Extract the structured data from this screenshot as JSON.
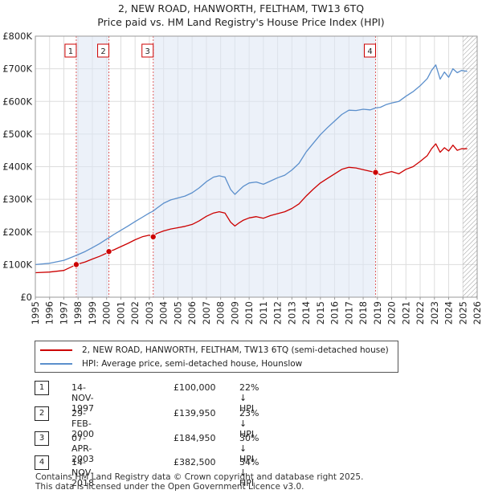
{
  "title_line1": "2, NEW ROAD, HANWORTH, FELTHAM, TW13 6TQ",
  "title_line2": "Price paid vs. HM Land Registry's House Price Index (HPI)",
  "chart_data": {
    "type": "line",
    "x_range": [
      1995,
      2026
    ],
    "y_range": [
      0,
      800000
    ],
    "y_ticks": [
      0,
      100000,
      200000,
      300000,
      400000,
      500000,
      600000,
      700000,
      800000
    ],
    "y_tick_labels": [
      "£0",
      "£100K",
      "£200K",
      "£300K",
      "£400K",
      "£500K",
      "£600K",
      "£700K",
      "£800K"
    ],
    "x_ticks": [
      1995,
      1996,
      1997,
      1998,
      1999,
      2000,
      2001,
      2002,
      2003,
      2004,
      2005,
      2006,
      2007,
      2008,
      2009,
      2010,
      2011,
      2012,
      2013,
      2014,
      2015,
      2016,
      2017,
      2018,
      2019,
      2020,
      2021,
      2022,
      2023,
      2024,
      2025,
      2026
    ],
    "x_tick_labels": [
      "1995",
      "1996",
      "1997",
      "1998",
      "1999",
      "2000",
      "2001",
      "2002",
      "2003",
      "2004",
      "2005",
      "2006",
      "2007",
      "2008",
      "2009",
      "2010",
      "2011",
      "2012",
      "2013",
      "2014",
      "2015",
      "2016",
      "2017",
      "2018",
      "2019",
      "2020",
      "2021",
      "2022",
      "2023",
      "2024",
      "2025",
      "2026"
    ],
    "shaded_ranges": [
      [
        1997.87,
        2000.16
      ],
      [
        2003.27,
        2018.87
      ]
    ],
    "hatched_from": 2025.0,
    "series": [
      {
        "name": "2, NEW ROAD, HANWORTH, FELTHAM, TW13 6TQ (semi-detached house)",
        "color": "#cc0000",
        "x": [
          1995.0,
          1996.0,
          1997.0,
          1997.87,
          1998.5,
          1999.0,
          1999.5,
          2000.0,
          2000.16,
          2000.5,
          2001.0,
          2001.5,
          2002.0,
          2002.5,
          2003.0,
          2003.27,
          2003.5,
          2004.0,
          2004.5,
          2005.0,
          2005.5,
          2006.0,
          2006.5,
          2007.0,
          2007.5,
          2007.9,
          2008.3,
          2008.7,
          2009.0,
          2009.3,
          2009.6,
          2010.0,
          2010.5,
          2011.0,
          2011.5,
          2012.0,
          2012.5,
          2013.0,
          2013.5,
          2014.0,
          2014.5,
          2015.0,
          2015.5,
          2016.0,
          2016.5,
          2017.0,
          2017.5,
          2018.0,
          2018.5,
          2018.87,
          2019.2,
          2019.6,
          2020.0,
          2020.5,
          2021.0,
          2021.5,
          2022.0,
          2022.5,
          2022.8,
          2023.1,
          2023.4,
          2023.7,
          2024.0,
          2024.3,
          2024.6,
          2024.9,
          2025.3
        ],
        "y": [
          75000,
          77000,
          82000,
          100000,
          108000,
          117000,
          125000,
          135000,
          139950,
          145000,
          155000,
          165000,
          176000,
          185000,
          190000,
          184950,
          195000,
          203000,
          209000,
          213000,
          217000,
          223000,
          234000,
          248000,
          258000,
          262000,
          258000,
          230000,
          218000,
          228000,
          236000,
          243000,
          247000,
          242000,
          250000,
          256000,
          262000,
          272000,
          286000,
          310000,
          331000,
          350000,
          364000,
          378000,
          392000,
          398000,
          396000,
          391000,
          386000,
          382500,
          375000,
          381000,
          385000,
          378000,
          392000,
          400000,
          416000,
          434000,
          455000,
          470000,
          444000,
          458000,
          448000,
          466000,
          450000,
          455000,
          455000
        ]
      },
      {
        "name": "HPI: Average price, semi-detached house, Hounslow",
        "color": "#5b8fcc",
        "x": [
          1995.0,
          1996.0,
          1997.0,
          1997.87,
          1998.5,
          1999.0,
          1999.5,
          2000.0,
          2000.16,
          2000.5,
          2001.0,
          2001.5,
          2002.0,
          2002.5,
          2003.0,
          2003.27,
          2003.5,
          2004.0,
          2004.5,
          2005.0,
          2005.5,
          2006.0,
          2006.5,
          2007.0,
          2007.5,
          2007.9,
          2008.3,
          2008.7,
          2009.0,
          2009.3,
          2009.6,
          2010.0,
          2010.5,
          2011.0,
          2011.5,
          2012.0,
          2012.5,
          2013.0,
          2013.5,
          2014.0,
          2014.5,
          2015.0,
          2015.5,
          2016.0,
          2016.5,
          2017.0,
          2017.5,
          2018.0,
          2018.5,
          2018.87,
          2019.2,
          2019.6,
          2020.0,
          2020.5,
          2021.0,
          2021.5,
          2022.0,
          2022.5,
          2022.8,
          2023.1,
          2023.4,
          2023.7,
          2024.0,
          2024.3,
          2024.6,
          2024.9,
          2025.3
        ],
        "y": [
          100000,
          104000,
          113000,
          128000,
          140000,
          152000,
          164000,
          178000,
          182000,
          192000,
          205000,
          218000,
          232000,
          245000,
          258000,
          264000,
          272000,
          288000,
          298000,
          304000,
          310000,
          320000,
          335000,
          354000,
          368000,
          372000,
          368000,
          330000,
          315000,
          328000,
          340000,
          350000,
          353000,
          346000,
          356000,
          366000,
          374000,
          390000,
          410000,
          445000,
          472000,
          498000,
          520000,
          540000,
          560000,
          573000,
          572000,
          576000,
          574000,
          580000,
          582000,
          590000,
          595000,
          600000,
          616000,
          630000,
          648000,
          670000,
          695000,
          712000,
          668000,
          690000,
          674000,
          700000,
          688000,
          695000,
          692000
        ]
      }
    ],
    "sales": [
      {
        "num": "1",
        "x": 1997.87,
        "y": 100000
      },
      {
        "num": "2",
        "x": 2000.16,
        "y": 139950
      },
      {
        "num": "3",
        "x": 2003.27,
        "y": 184950
      },
      {
        "num": "4",
        "x": 2018.87,
        "y": 382500
      }
    ]
  },
  "legend": {
    "property_label": "2, NEW ROAD, HANWORTH, FELTHAM, TW13 6TQ (semi-detached house)",
    "hpi_label": "HPI: Average price, semi-detached house, Hounslow",
    "property_color": "#cc0000",
    "hpi_color": "#5b8fcc"
  },
  "transactions": [
    {
      "num": "1",
      "date": "14-NOV-1997",
      "price": "£100,000",
      "hpi": "22% ↓ HPI"
    },
    {
      "num": "2",
      "date": "29-FEB-2000",
      "price": "£139,950",
      "hpi": "23% ↓ HPI"
    },
    {
      "num": "3",
      "date": "07-APR-2003",
      "price": "£184,950",
      "hpi": "30% ↓ HPI"
    },
    {
      "num": "4",
      "date": "14-NOV-2018",
      "price": "£382,500",
      "hpi": "34% ↓ HPI"
    }
  ],
  "footer": {
    "line1": "Contains HM Land Registry data © Crown copyright and database right 2025.",
    "line2": "This data is licensed under the Open Government Licence v3.0."
  }
}
